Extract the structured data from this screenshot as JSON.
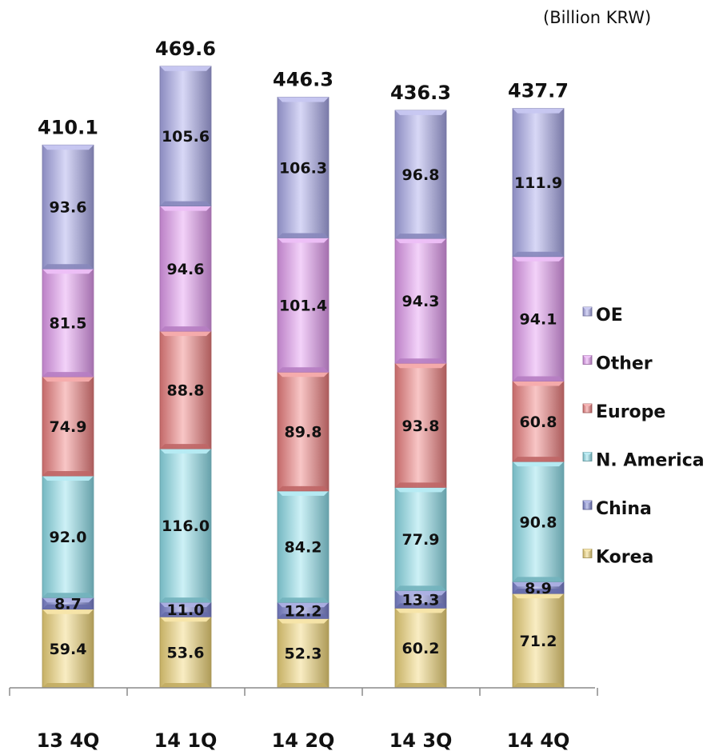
{
  "unit_note": "(Billion KRW)",
  "chart_data": {
    "type": "bar",
    "stacked": true,
    "categories": [
      "13 4Q",
      "14 1Q",
      "14 2Q",
      "14 3Q",
      "14 4Q"
    ],
    "totals": [
      "410.1",
      "469.6",
      "446.3",
      "436.3",
      "437.7"
    ],
    "series": [
      {
        "name": "Korea",
        "values": [
          59.4,
          53.6,
          52.3,
          60.2,
          71.2
        ],
        "color": "#f2d77a"
      },
      {
        "name": "China",
        "values": [
          8.7,
          11.0,
          12.2,
          13.3,
          8.9
        ],
        "color": "#7f86d4"
      },
      {
        "name": "N. America",
        "values": [
          92.0,
          116.0,
          84.2,
          77.9,
          90.8
        ],
        "color": "#8fe0ec"
      },
      {
        "name": "Europe",
        "values": [
          74.9,
          88.8,
          89.8,
          93.8,
          60.8
        ],
        "color": "#ef8080"
      },
      {
        "name": "Other",
        "values": [
          81.5,
          94.6,
          101.4,
          94.3,
          94.1
        ],
        "color": "#e49cf2"
      },
      {
        "name": "OE",
        "values": [
          93.6,
          105.6,
          106.3,
          96.8,
          111.9
        ],
        "color": "#a9a9ea"
      }
    ],
    "legend": [
      "OE",
      "Other",
      "Europe",
      "N. America",
      "China",
      "Korea"
    ],
    "legend_position": "right",
    "grid": false
  }
}
